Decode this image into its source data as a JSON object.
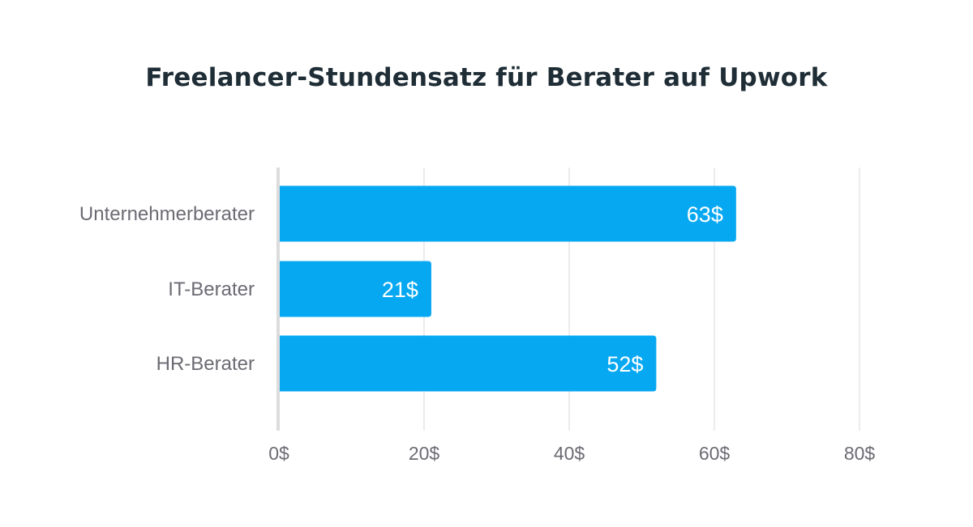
{
  "chart_data": {
    "type": "bar",
    "orientation": "horizontal",
    "title": "Freelancer-Stundensatz für Berater auf Upwork",
    "xlabel": "",
    "ylabel": "",
    "categories": [
      "Unternehmerberater",
      "IT-Berater",
      "HR-Berater"
    ],
    "values": [
      63,
      21,
      52
    ],
    "value_labels": [
      "63$",
      "21$",
      "52$"
    ],
    "xlim": [
      0,
      83
    ],
    "x_ticks": [
      0,
      20,
      40,
      60,
      80
    ],
    "x_tick_labels": [
      "0$",
      "20$",
      "40$",
      "60$",
      "80$"
    ],
    "grid": true,
    "legend": "none",
    "bar_color": "#07a8f2",
    "grid_color": "#e6e6e6",
    "axis_color": "#dcdcdc"
  }
}
